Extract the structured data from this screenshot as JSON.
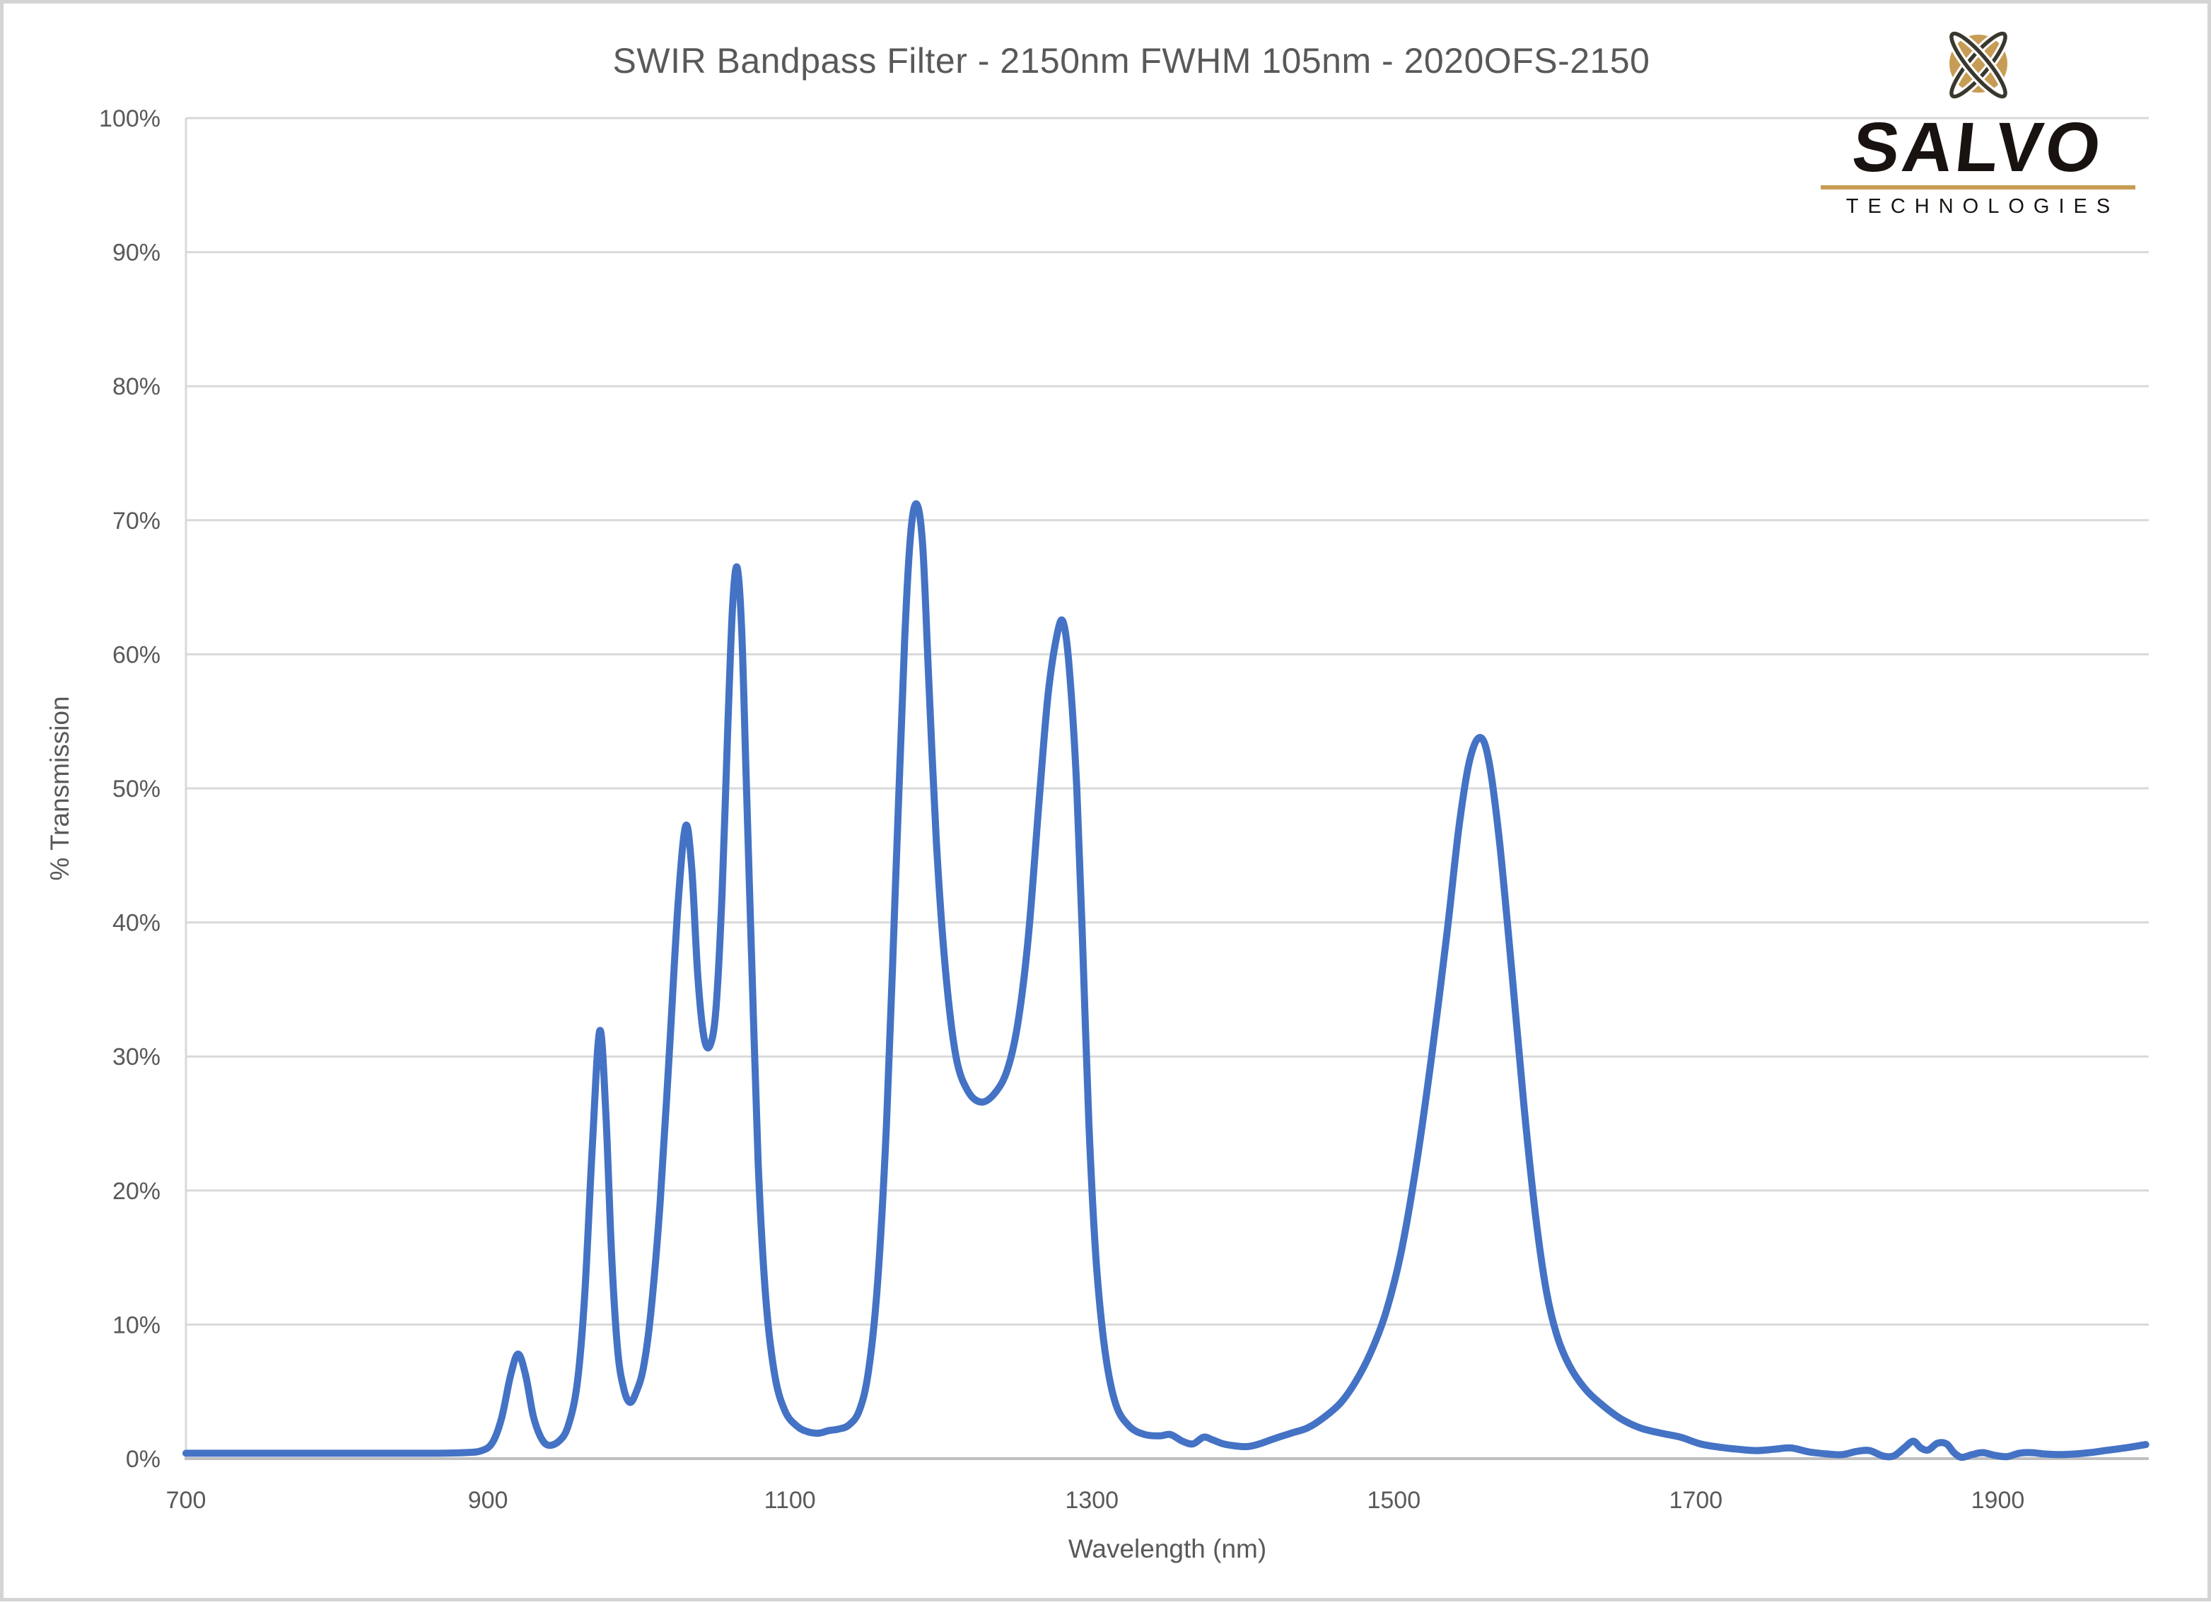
{
  "logo": {
    "brand": "SALVO",
    "subbrand": "TECHNOLOGIES",
    "icon": "atom-orbit-icon",
    "gold": "#C79C55",
    "orbit_color": "#3a372e",
    "text_color": "#181310"
  },
  "chart_data": {
    "type": "line",
    "title": "SWIR Bandpass Filter - 2150nm FWHM 105nm - 2020OFS-2150",
    "xlabel": "Wavelength (nm)",
    "ylabel": "% Transmission",
    "xlim": [
      700,
      2000
    ],
    "ylim": [
      0,
      100
    ],
    "grid": "horizontal",
    "legend": "none",
    "line_color": "#4472C4",
    "gridline_color": "#D9D9D9",
    "axis_line_color": "#BFBFBF",
    "tick_label_color": "#595959",
    "x_ticks": [
      {
        "value": 700,
        "label": "700"
      },
      {
        "value": 900,
        "label": "900"
      },
      {
        "value": 1100,
        "label": "1100"
      },
      {
        "value": 1300,
        "label": "1300"
      },
      {
        "value": 1500,
        "label": "1500"
      },
      {
        "value": 1700,
        "label": "1700"
      },
      {
        "value": 1900,
        "label": "1900"
      }
    ],
    "y_ticks": [
      {
        "value": 0,
        "label": "0%"
      },
      {
        "value": 10,
        "label": "10%"
      },
      {
        "value": 20,
        "label": "20%"
      },
      {
        "value": 30,
        "label": "30%"
      },
      {
        "value": 40,
        "label": "40%"
      },
      {
        "value": 50,
        "label": "50%"
      },
      {
        "value": 60,
        "label": "60%"
      },
      {
        "value": 70,
        "label": "70%"
      },
      {
        "value": 80,
        "label": "80%"
      },
      {
        "value": 90,
        "label": "90%"
      },
      {
        "value": 100,
        "label": "100%"
      }
    ],
    "series": [
      {
        "name": "% Transmission",
        "points": [
          [
            700,
            0.4
          ],
          [
            760,
            0.4
          ],
          [
            820,
            0.4
          ],
          [
            860,
            0.4
          ],
          [
            885,
            0.45
          ],
          [
            896,
            0.6
          ],
          [
            903,
            1.2
          ],
          [
            909,
            3.0
          ],
          [
            915,
            6.2
          ],
          [
            920,
            7.8
          ],
          [
            925,
            6.2
          ],
          [
            930,
            3.2
          ],
          [
            935,
            1.6
          ],
          [
            940,
            1.0
          ],
          [
            947,
            1.3
          ],
          [
            953,
            2.4
          ],
          [
            959,
            5.5
          ],
          [
            964,
            12
          ],
          [
            969,
            23
          ],
          [
            974,
            31.9
          ],
          [
            978,
            26
          ],
          [
            982,
            15
          ],
          [
            986,
            8
          ],
          [
            990,
            5.2
          ],
          [
            994,
            4.2
          ],
          [
            998,
            4.9
          ],
          [
            1003,
            6.8
          ],
          [
            1008,
            11
          ],
          [
            1014,
            19
          ],
          [
            1020,
            30
          ],
          [
            1026,
            41.5
          ],
          [
            1031,
            47.2
          ],
          [
            1035,
            44
          ],
          [
            1039,
            36
          ],
          [
            1043,
            31.5
          ],
          [
            1047,
            30.8
          ],
          [
            1051,
            33.5
          ],
          [
            1055,
            42
          ],
          [
            1059,
            55
          ],
          [
            1062,
            63.5
          ],
          [
            1065,
            66.5
          ],
          [
            1068,
            62
          ],
          [
            1071,
            51
          ],
          [
            1075,
            36
          ],
          [
            1079,
            22
          ],
          [
            1084,
            12
          ],
          [
            1090,
            6.2
          ],
          [
            1097,
            3.5
          ],
          [
            1105,
            2.4
          ],
          [
            1112,
            2.0
          ],
          [
            1119,
            1.9
          ],
          [
            1126,
            2.1
          ],
          [
            1132,
            2.2
          ],
          [
            1139,
            2.5
          ],
          [
            1146,
            3.6
          ],
          [
            1152,
            6.5
          ],
          [
            1158,
            13
          ],
          [
            1164,
            25
          ],
          [
            1170,
            43
          ],
          [
            1176,
            61
          ],
          [
            1180,
            69
          ],
          [
            1184,
            71.2
          ],
          [
            1188,
            68
          ],
          [
            1192,
            58
          ],
          [
            1197,
            46
          ],
          [
            1203,
            36.5
          ],
          [
            1210,
            30
          ],
          [
            1218,
            27.4
          ],
          [
            1227,
            26.6
          ],
          [
            1236,
            27.3
          ],
          [
            1244,
            29
          ],
          [
            1251,
            32.5
          ],
          [
            1258,
            39
          ],
          [
            1265,
            49
          ],
          [
            1271,
            57
          ],
          [
            1277,
            61.5
          ],
          [
            1281,
            62.4
          ],
          [
            1285,
            59
          ],
          [
            1290,
            50
          ],
          [
            1294,
            38
          ],
          [
            1298,
            25
          ],
          [
            1303,
            14.5
          ],
          [
            1309,
            7.8
          ],
          [
            1316,
            4.0
          ],
          [
            1325,
            2.4
          ],
          [
            1335,
            1.8
          ],
          [
            1345,
            1.7
          ],
          [
            1352,
            1.8
          ],
          [
            1360,
            1.3
          ],
          [
            1367,
            1.1
          ],
          [
            1374,
            1.6
          ],
          [
            1380,
            1.4
          ],
          [
            1387,
            1.1
          ],
          [
            1395,
            0.95
          ],
          [
            1403,
            0.9
          ],
          [
            1411,
            1.1
          ],
          [
            1421,
            1.5
          ],
          [
            1432,
            1.9
          ],
          [
            1443,
            2.3
          ],
          [
            1454,
            3.1
          ],
          [
            1465,
            4.2
          ],
          [
            1475,
            5.8
          ],
          [
            1485,
            8.0
          ],
          [
            1495,
            11
          ],
          [
            1505,
            15.5
          ],
          [
            1515,
            22
          ],
          [
            1525,
            30
          ],
          [
            1535,
            39
          ],
          [
            1543,
            47
          ],
          [
            1550,
            52
          ],
          [
            1557,
            53.8
          ],
          [
            1563,
            52
          ],
          [
            1570,
            46
          ],
          [
            1578,
            36.5
          ],
          [
            1586,
            26.5
          ],
          [
            1594,
            18
          ],
          [
            1601,
            12.5
          ],
          [
            1608,
            9.2
          ],
          [
            1616,
            7.0
          ],
          [
            1626,
            5.3
          ],
          [
            1637,
            4.1
          ],
          [
            1650,
            3.0
          ],
          [
            1663,
            2.3
          ],
          [
            1677,
            1.9
          ],
          [
            1690,
            1.6
          ],
          [
            1703,
            1.1
          ],
          [
            1716,
            0.85
          ],
          [
            1728,
            0.7
          ],
          [
            1740,
            0.6
          ],
          [
            1752,
            0.7
          ],
          [
            1763,
            0.8
          ],
          [
            1775,
            0.5
          ],
          [
            1787,
            0.35
          ],
          [
            1797,
            0.3
          ],
          [
            1807,
            0.55
          ],
          [
            1815,
            0.6
          ],
          [
            1824,
            0.2
          ],
          [
            1831,
            0.2
          ],
          [
            1838,
            0.8
          ],
          [
            1844,
            1.3
          ],
          [
            1849,
            0.8
          ],
          [
            1854,
            0.65
          ],
          [
            1860,
            1.15
          ],
          [
            1866,
            1.1
          ],
          [
            1871,
            0.45
          ],
          [
            1876,
            0.1
          ],
          [
            1883,
            0.3
          ],
          [
            1890,
            0.45
          ],
          [
            1898,
            0.25
          ],
          [
            1906,
            0.15
          ],
          [
            1914,
            0.4
          ],
          [
            1922,
            0.45
          ],
          [
            1931,
            0.35
          ],
          [
            1941,
            0.3
          ],
          [
            1951,
            0.35
          ],
          [
            1961,
            0.45
          ],
          [
            1971,
            0.6
          ],
          [
            1981,
            0.75
          ],
          [
            1990,
            0.9
          ],
          [
            1998,
            1.05
          ]
        ]
      }
    ]
  }
}
